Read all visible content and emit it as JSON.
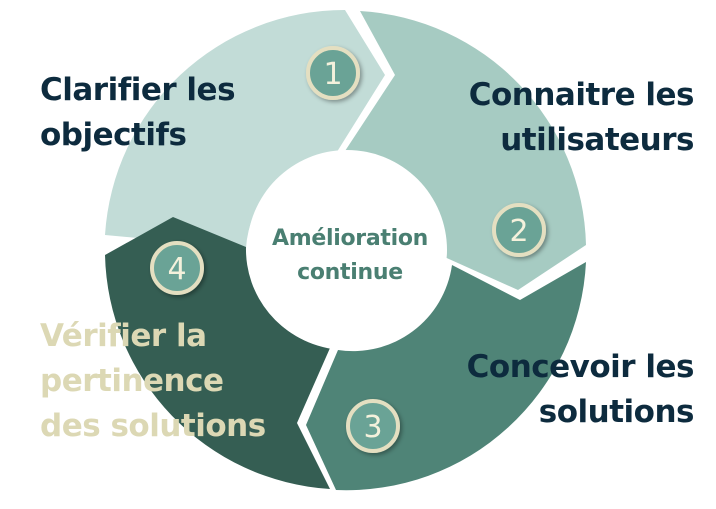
{
  "diagram": {
    "center": {
      "lines": [
        "Amélioration",
        "continue"
      ]
    },
    "steps": [
      {
        "number": "1",
        "lines": [
          "Clarifier les",
          "objectifs"
        ]
      },
      {
        "number": "2",
        "lines": [
          "Connaitre les",
          "utilisateurs"
        ]
      },
      {
        "number": "3",
        "lines": [
          "Concevoir les",
          "solutions"
        ]
      },
      {
        "number": "4",
        "lines": [
          "Vérifier la",
          "pertinence",
          "des solutions"
        ]
      }
    ]
  },
  "colors": {
    "segment_1": "#c2dcd7",
    "segment_2": "#a6cbc2",
    "segment_3": "#4f8477",
    "segment_4": "#355e53",
    "badge_fill": "#6aa396",
    "badge_ring": "#e4dfc1",
    "center_text": "#4a7f72",
    "dark_text": "#0d2b3e",
    "step_4_text": "#dcd8b4"
  }
}
